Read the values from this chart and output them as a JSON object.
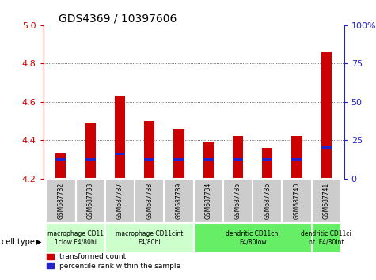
{
  "title": "GDS4369 / 10397606",
  "samples": [
    "GSM687732",
    "GSM687733",
    "GSM687737",
    "GSM687738",
    "GSM687739",
    "GSM687734",
    "GSM687735",
    "GSM687736",
    "GSM687740",
    "GSM687741"
  ],
  "red_values": [
    4.33,
    4.49,
    4.63,
    4.5,
    4.46,
    4.39,
    4.42,
    4.36,
    4.42,
    4.86
  ],
  "blue_values": [
    4.3,
    4.3,
    4.33,
    4.3,
    4.3,
    4.3,
    4.3,
    4.3,
    4.3,
    4.36
  ],
  "ymin": 4.2,
  "ymax": 5.0,
  "yticks_left": [
    4.2,
    4.4,
    4.6,
    4.8,
    5.0
  ],
  "right_yticks_pct": [
    0,
    25,
    50,
    75,
    100
  ],
  "right_yticklabels": [
    "0",
    "25",
    "50",
    "75",
    "100%"
  ],
  "bar_width": 0.35,
  "red_color": "#cc0000",
  "blue_color": "#2222cc",
  "grid_color": "#444444",
  "tick_box_color": "#cccccc",
  "cell_type_groups": [
    {
      "label": "macrophage CD11\n1clow F4/80hi",
      "start": 0,
      "end": 1,
      "color": "#ccffcc"
    },
    {
      "label": "macrophage CD11cint\nF4/80hi",
      "start": 2,
      "end": 4,
      "color": "#ccffcc"
    },
    {
      "label": "dendritic CD11chi\nF4/80low",
      "start": 5,
      "end": 8,
      "color": "#66ee66"
    },
    {
      "label": "dendritic CD11ci\nnt  F4/80int",
      "start": 9,
      "end": 9,
      "color": "#66ee66"
    }
  ],
  "legend_red": "transformed count",
  "legend_blue": "percentile rank within the sample",
  "blue_bar_height": 0.012
}
